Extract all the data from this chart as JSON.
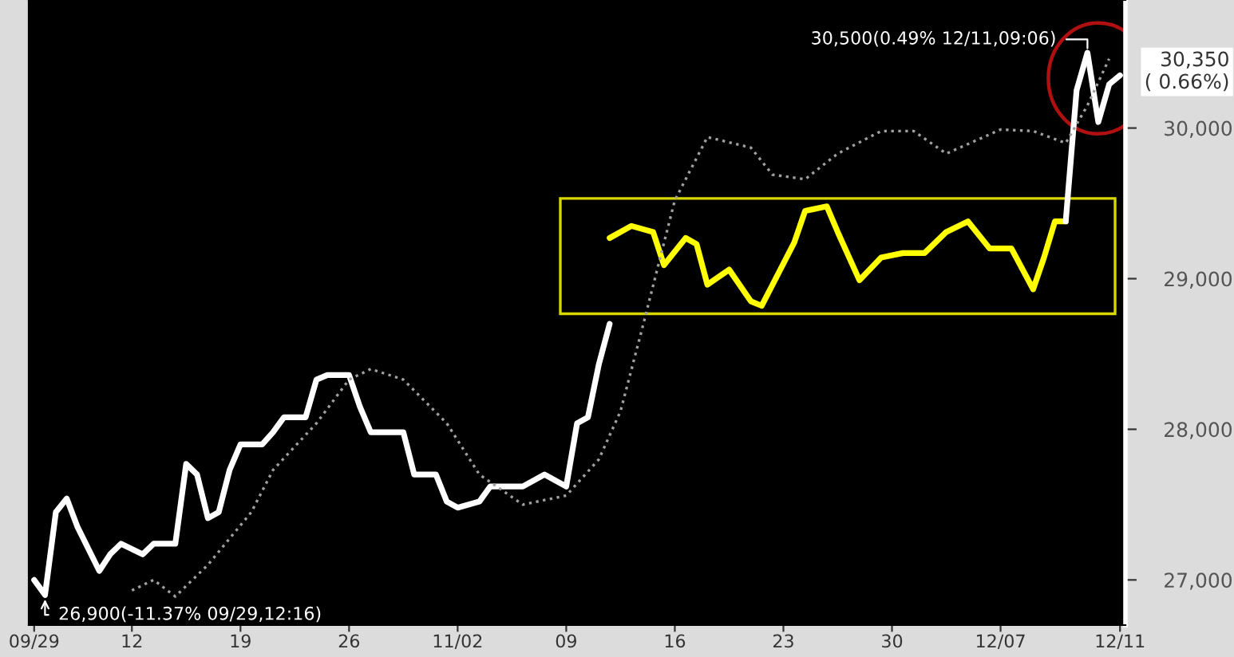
{
  "chart_data": {
    "type": "line",
    "ylim": [
      26700,
      30850
    ],
    "categories": [
      "09/29",
      null,
      null,
      null,
      null,
      null,
      null,
      null,
      null,
      "12",
      null,
      null,
      null,
      null,
      null,
      null,
      null,
      null,
      null,
      "19",
      null,
      null,
      null,
      null,
      null,
      null,
      null,
      null,
      null,
      "26",
      null,
      null,
      null,
      null,
      null,
      null,
      null,
      null,
      null,
      "11/02",
      null,
      null,
      null,
      null,
      null,
      null,
      null,
      null,
      null,
      "09",
      null,
      null,
      null,
      null,
      null,
      null,
      null,
      null,
      null,
      "16",
      null,
      null,
      null,
      null,
      null,
      null,
      null,
      null,
      null,
      "23",
      null,
      null,
      null,
      null,
      null,
      null,
      null,
      null,
      null,
      "30",
      null,
      null,
      null,
      null,
      null,
      null,
      null,
      null,
      null,
      "12/07",
      null,
      null,
      null,
      null,
      null,
      null,
      null,
      null,
      null,
      null,
      "12/11"
    ],
    "yticks": [
      {
        "value": 27000,
        "label": "27,000"
      },
      {
        "value": 28000,
        "label": "28,000"
      },
      {
        "value": 29000,
        "label": "29,000"
      },
      {
        "value": 30000,
        "label": "30,000"
      }
    ],
    "grid": false,
    "series": [
      {
        "color": "#ffffff",
        "values": [
          27000,
          26900,
          27450,
          27540,
          27350,
          null,
          27060,
          27170,
          27240,
          null,
          27170,
          27240,
          null,
          27240,
          27770,
          27700,
          27410,
          27450,
          27730,
          27900,
          null,
          27900,
          27980,
          28080,
          null,
          28080,
          28330,
          28360,
          null,
          28360,
          28150,
          27980,
          27980,
          null,
          27980,
          27700,
          null,
          27700,
          27520,
          27480,
          null,
          27520,
          27620,
          27620,
          null,
          27620,
          null,
          27700,
          null,
          27620,
          28040,
          28080,
          28430,
          28700,
          null,
          null,
          null,
          null,
          null,
          null,
          null,
          null,
          null,
          null,
          null,
          null,
          null,
          null,
          null,
          null,
          null,
          null,
          null,
          null,
          null,
          null,
          null,
          null,
          null,
          null,
          null,
          null,
          null,
          null,
          null,
          null,
          null,
          null,
          null,
          null,
          null,
          null,
          null,
          null,
          null,
          null,
          null,
          null,
          null,
          null,
          null
        ]
      },
      {
        "color": "#ffff00",
        "values": [
          null,
          null,
          null,
          null,
          null,
          null,
          null,
          null,
          null,
          null,
          null,
          null,
          null,
          null,
          null,
          null,
          null,
          null,
          null,
          null,
          null,
          null,
          null,
          null,
          null,
          null,
          null,
          null,
          null,
          null,
          null,
          null,
          null,
          null,
          null,
          null,
          null,
          null,
          null,
          null,
          null,
          null,
          null,
          null,
          null,
          null,
          null,
          null,
          null,
          null,
          null,
          null,
          null,
          29270,
          null,
          29350,
          null,
          29310,
          29090,
          null,
          29270,
          29230,
          28960,
          null,
          29060,
          null,
          28850,
          28820,
          28960,
          null,
          29240,
          29450,
          null,
          29480,
          29310,
          null,
          28990,
          null,
          29140,
          null,
          29170,
          null,
          29170,
          null,
          29310,
          null,
          29380,
          null,
          29200,
          null,
          29200,
          null,
          28930,
          29140,
          29380,
          29380,
          null,
          null,
          null,
          null,
          null
        ]
      },
      {
        "color": "#ffffff",
        "values": [
          null,
          null,
          null,
          null,
          null,
          null,
          null,
          null,
          null,
          null,
          null,
          null,
          null,
          null,
          null,
          null,
          null,
          null,
          null,
          null,
          null,
          null,
          null,
          null,
          null,
          null,
          null,
          null,
          null,
          null,
          null,
          null,
          null,
          null,
          null,
          null,
          null,
          null,
          null,
          null,
          null,
          null,
          null,
          null,
          null,
          null,
          null,
          null,
          null,
          null,
          null,
          null,
          null,
          null,
          null,
          null,
          null,
          null,
          null,
          null,
          null,
          null,
          null,
          null,
          null,
          null,
          null,
          null,
          null,
          null,
          null,
          null,
          null,
          null,
          null,
          null,
          null,
          null,
          null,
          null,
          null,
          null,
          null,
          null,
          null,
          null,
          null,
          null,
          null,
          null,
          null,
          null,
          null,
          null,
          null,
          29380,
          30250,
          30500,
          30040,
          30290,
          30350
        ]
      },
      {
        "color": "#a0a0a0",
        "line_style": "dotted",
        "values": [
          null,
          null,
          null,
          null,
          null,
          null,
          null,
          null,
          null,
          26930,
          null,
          27000,
          null,
          26890,
          null,
          null,
          27100,
          null,
          null,
          null,
          27450,
          null,
          27730,
          null,
          null,
          null,
          28040,
          null,
          null,
          28330,
          null,
          28400,
          null,
          null,
          28330,
          null,
          null,
          null,
          28040,
          null,
          null,
          27700,
          null,
          null,
          null,
          27500,
          null,
          null,
          null,
          27560,
          null,
          null,
          27800,
          null,
          28120,
          null,
          28670,
          null,
          null,
          29520,
          null,
          null,
          29940,
          null,
          null,
          null,
          29870,
          null,
          29690,
          null,
          null,
          29660,
          null,
          null,
          29830,
          null,
          null,
          null,
          29980,
          null,
          null,
          29980,
          null,
          null,
          29830,
          null,
          null,
          null,
          null,
          29990,
          null,
          null,
          29980,
          null,
          null,
          29900,
          null,
          30150,
          null,
          30460,
          null
        ]
      }
    ],
    "annotations": [
      "30,500(0.49% 12/11,09:06)",
      {
        "text": "26,900(-11.37% 09/29,12:16)",
        "y": 26900
      },
      "30,350\n( 0.66%)"
    ]
  }
}
